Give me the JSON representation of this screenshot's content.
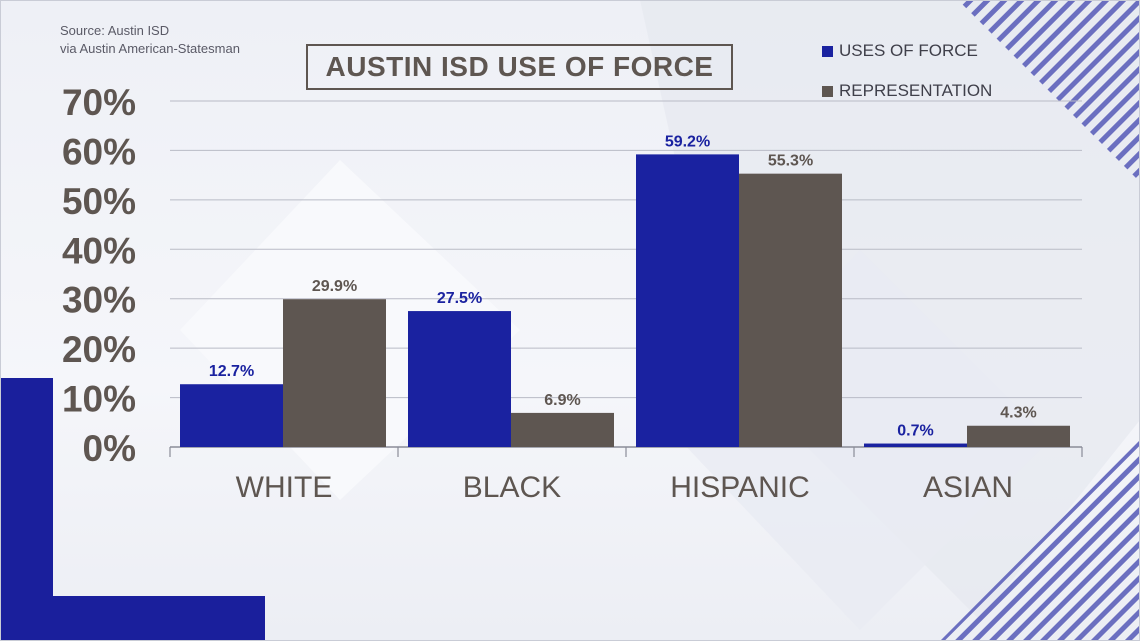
{
  "source": {
    "line1": "Source: Austin ISD",
    "line2": "via Austin American-Statesman"
  },
  "title": "AUSTIN ISD USE OF FORCE",
  "colors": {
    "uses_of_force": "#1a22a0",
    "representation": "#5e5651",
    "accent_navy": "#1a1f9c",
    "stripe": "#6b6fc0"
  },
  "chart_data": {
    "type": "bar",
    "title": "AUSTIN ISD USE OF FORCE",
    "categories": [
      "WHITE",
      "BLACK",
      "HISPANIC",
      "ASIAN"
    ],
    "series": [
      {
        "name": "USES OF FORCE",
        "values": [
          12.7,
          27.5,
          59.2,
          0.7
        ],
        "labels": [
          "12.7%",
          "27.5%",
          "59.2%",
          "0.7%"
        ]
      },
      {
        "name": "REPRESENTATION",
        "values": [
          29.9,
          6.9,
          55.3,
          4.3
        ],
        "labels": [
          "29.9%",
          "6.9%",
          "55.3%",
          "4.3%"
        ]
      }
    ],
    "yticks": [
      "0%",
      "10%",
      "20%",
      "30%",
      "40%",
      "50%",
      "60%",
      "70%"
    ],
    "ylim": [
      0,
      70
    ],
    "grid": true,
    "legend_position": "top-right",
    "xlabel": "",
    "ylabel": ""
  }
}
